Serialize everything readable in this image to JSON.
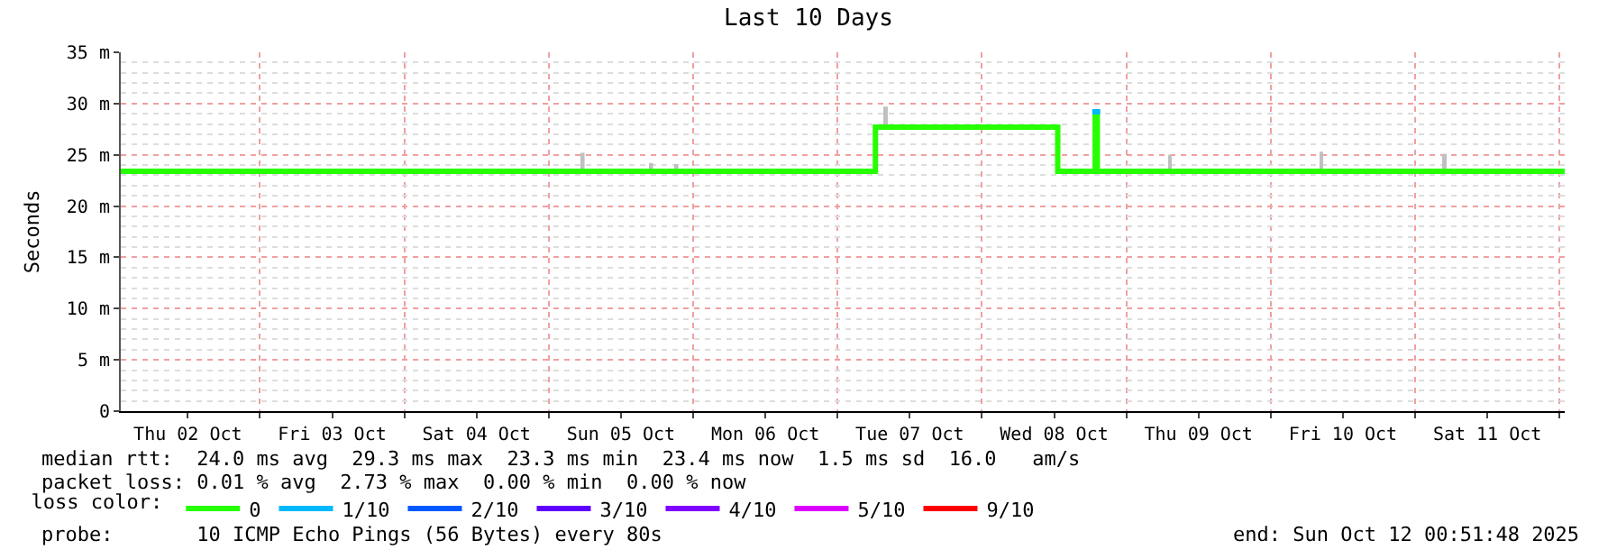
{
  "chart_data": {
    "type": "step",
    "title": "Last 10 Days",
    "ylabel": "Seconds",
    "legend_title": "loss color:",
    "legend": "bottom",
    "grid": true,
    "marker": "none",
    "line_style": "solid",
    "xlim": [
      "2025-10-02T00:52",
      "2025-10-12T00:52"
    ],
    "xticks": [
      {
        "value": "2025-10-02T12:00",
        "label": "Thu 02 Oct"
      },
      {
        "value": "2025-10-03T12:00",
        "label": "Fri 03 Oct"
      },
      {
        "value": "2025-10-04T12:00",
        "label": "Sat 04 Oct"
      },
      {
        "value": "2025-10-05T12:00",
        "label": "Sun 05 Oct"
      },
      {
        "value": "2025-10-06T12:00",
        "label": "Mon 06 Oct"
      },
      {
        "value": "2025-10-07T12:00",
        "label": "Tue 07 Oct"
      },
      {
        "value": "2025-10-08T12:00",
        "label": "Wed 08 Oct"
      },
      {
        "value": "2025-10-09T12:00",
        "label": "Thu 09 Oct"
      },
      {
        "value": "2025-10-10T12:00",
        "label": "Fri 10 Oct"
      },
      {
        "value": "2025-10-11T12:00",
        "label": "Sat 11 Oct"
      }
    ],
    "ylim": [
      0,
      35
    ],
    "yticks": [
      0,
      {
        "value": 5,
        "label": "5 m"
      },
      {
        "value": 10,
        "label": "10 m"
      },
      {
        "value": 15,
        "label": "15 m"
      },
      {
        "value": 20,
        "label": "20 m"
      },
      {
        "value": 25,
        "label": "25 m"
      },
      {
        "value": 30,
        "label": "30 m"
      },
      {
        "value": 35,
        "label": "35 m"
      }
    ],
    "series": [
      {
        "type": "bar",
        "color": "#c0c0c0",
        "x": [
          "2025-10-05T05:42",
          "2025-10-05T17:06",
          "2025-10-05T21:18",
          "2025-10-07T08:06",
          "2025-10-09T07:12",
          "2025-10-10T08:24",
          "2025-10-11T05:00"
        ],
        "base": [
          23.4,
          23.4,
          23.4,
          27.7,
          23.4,
          23.4,
          23.4
        ],
        "values": [
          1.8,
          0.8,
          0.7,
          2.0,
          1.6,
          1.9,
          1.7
        ]
      },
      {
        "name": "0",
        "color": "#26ff00",
        "x": [
          "2025-10-02T00:52",
          "2025-10-07T06:18",
          "2025-10-08T12:36",
          "2025-10-08T18:50",
          "2025-10-08T19:10",
          "2025-10-12T00:52"
        ],
        "values": [
          23.4,
          27.7,
          23.4,
          29.2,
          23.4,
          23.4
        ]
      },
      {
        "name": "1/10",
        "color": "#00b8ff",
        "x": [
          "2025-10-08T18:20",
          "2025-10-08T19:40"
        ],
        "values": [
          29.2,
          29.2
        ]
      },
      {
        "name": "2/10",
        "color": "#0059ff"
      },
      {
        "name": "3/10",
        "color": "#5e00ff"
      },
      {
        "name": "4/10",
        "color": "#7e00ff"
      },
      {
        "name": "5/10",
        "color": "#dd00ff"
      },
      {
        "name": "9/10",
        "color": "#ff0000"
      }
    ],
    "annotations": [
      "median rtt:  24.0 ms avg  29.3 ms max  23.3 ms min  23.4 ms now  1.5 ms sd  16.0   am/s",
      "packet loss: 0.01 % avg  2.73 % max  0.00 % min  0.00 % now",
      "probe:       10 ICMP Echo Pings (56 Bytes) every 80s",
      "end: Sun Oct 12 00:51:48 2025"
    ]
  }
}
